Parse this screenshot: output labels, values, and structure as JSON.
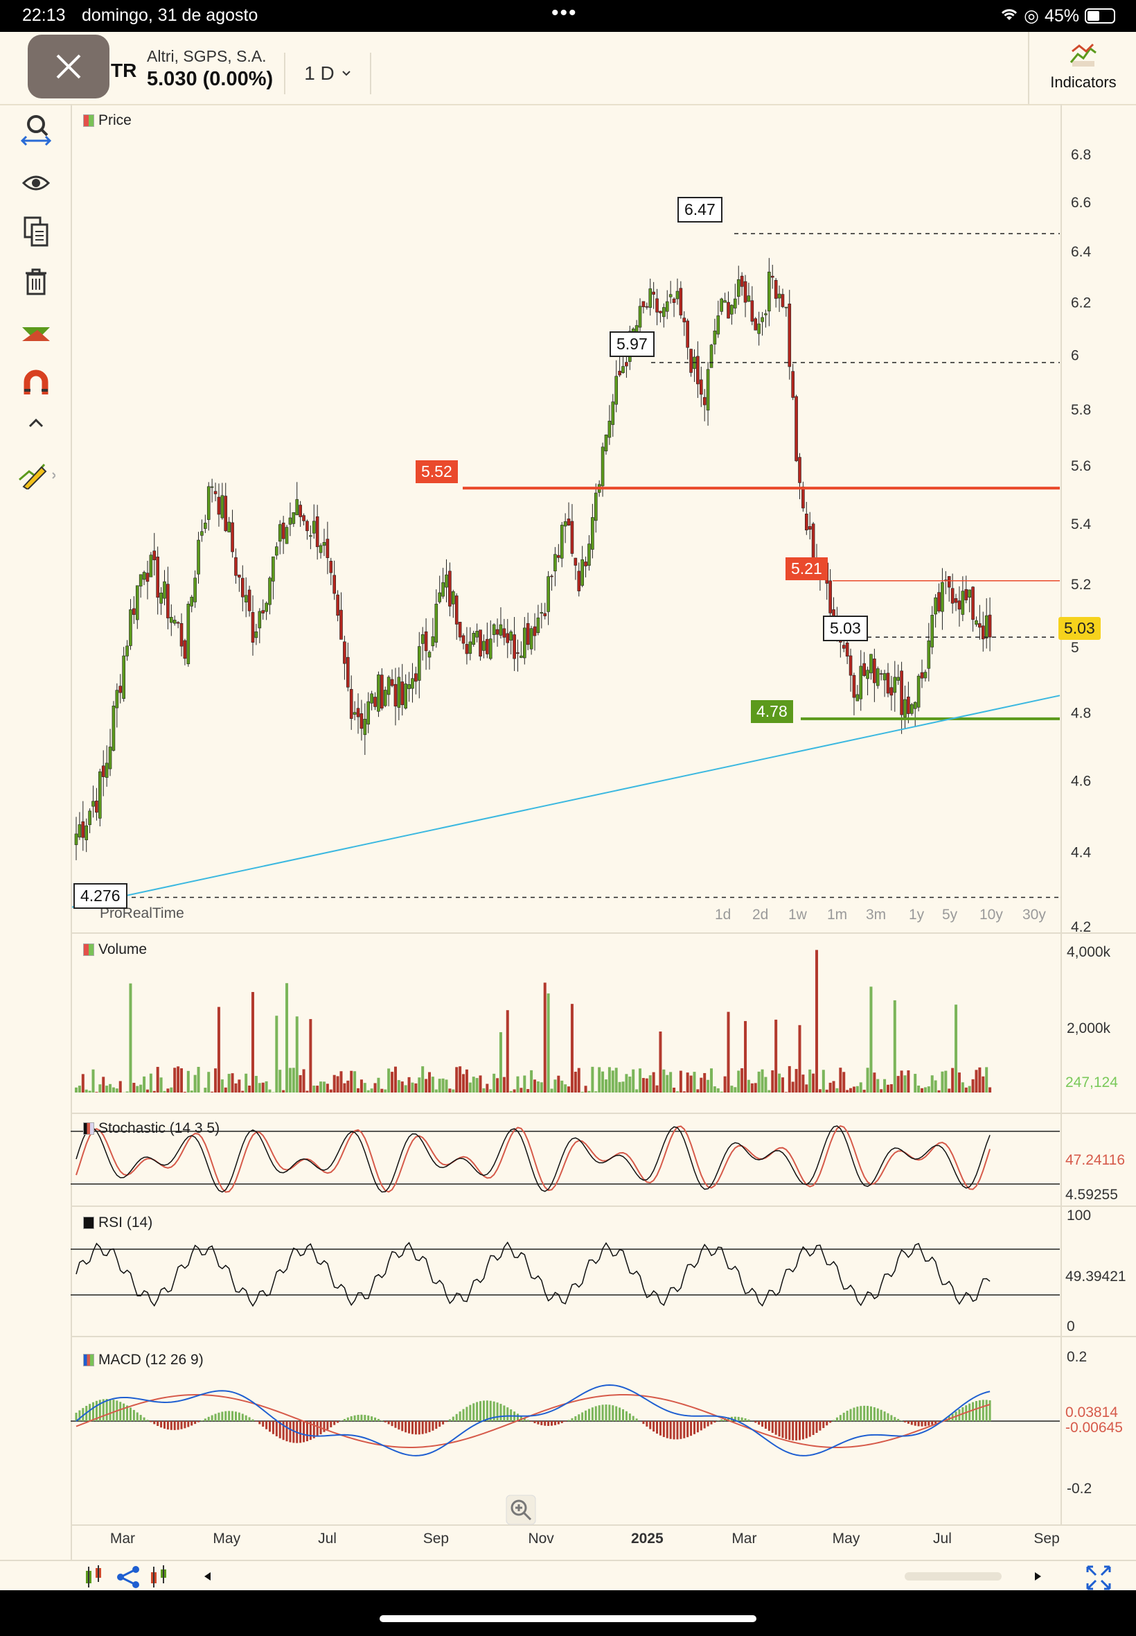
{
  "status_bar": {
    "time": "22:13",
    "date": "domingo, 31 de agosto",
    "battery": "45%"
  },
  "header": {
    "symbol": "TR",
    "company": "Altri, SGPS, S.A.",
    "price_change": "5.030 (0.00%)",
    "timeframe": "1 D",
    "indicators_label": "Indicators"
  },
  "sidebar": {
    "tools": [
      "search-icon",
      "eye-icon",
      "copy-icon",
      "trash-icon",
      "trend-icon",
      "magnet-icon",
      "chevron-up-icon",
      "pencil-icon"
    ]
  },
  "price_pane": {
    "label": "Price",
    "watermark": "ProRealTime",
    "y_ticks": [
      "6.8",
      "6.6",
      "6.4",
      "6.2",
      "6",
      "5.8",
      "5.6",
      "5.4",
      "5.2",
      "5",
      "4.8",
      "4.6",
      "4.4",
      "4.2"
    ],
    "level_tags": {
      "high": "6.47",
      "mid": "5.97",
      "resistance": "5.52",
      "recent": "5.21",
      "current": "5.03",
      "support": "4.78",
      "low": "4.276"
    },
    "last_price": "5.03",
    "periods": [
      "1d",
      "2d",
      "1w",
      "1m",
      "3m",
      "1y",
      "5y",
      "10y",
      "30y"
    ]
  },
  "volume_pane": {
    "label": "Volume",
    "y_ticks": [
      "4,000k",
      "2,000k"
    ],
    "last_value": "247,124"
  },
  "stochastic_pane": {
    "label": "Stochastic (14 3 5)",
    "value_k": "47.24116",
    "value_d": "4.59255"
  },
  "rsi_pane": {
    "label": "RSI (14)",
    "y_ticks": [
      "100",
      "0"
    ],
    "value": "49.39421"
  },
  "macd_pane": {
    "label": "MACD (12 26 9)",
    "y_ticks": [
      "0.2",
      "-0.2"
    ],
    "value_macd": "0.03814",
    "value_hist": "-0.00645"
  },
  "x_axis": {
    "labels": [
      "Mar",
      "May",
      "Jul",
      "Sep",
      "Nov",
      "2025",
      "Mar",
      "May",
      "Jul",
      "Sep"
    ]
  },
  "colors": {
    "up": "#5c9a1c",
    "down": "#b3261e",
    "resistance": "#ea4a2c",
    "support": "#5c9a1c",
    "trendline": "#3bb8e0",
    "macd_line": "#1f5fd1",
    "signal_line": "#d65a4a"
  },
  "chart_data": {
    "type": "candlestick",
    "title": "Altri, SGPS, S.A. 1 D",
    "x_labels": [
      "Mar",
      "May",
      "Jul",
      "Sep",
      "Nov",
      "2025",
      "Mar",
      "May",
      "Jul",
      "Sep"
    ],
    "y_range": [
      4.2,
      6.8
    ],
    "close_series": [
      4.45,
      4.52,
      4.6,
      4.85,
      5.1,
      5.28,
      5.2,
      5.1,
      5.0,
      5.35,
      5.55,
      5.4,
      5.2,
      5.05,
      5.2,
      5.35,
      5.45,
      5.4,
      5.35,
      5.1,
      4.85,
      4.78,
      4.85,
      4.9,
      4.82,
      4.95,
      5.05,
      5.2,
      5.1,
      5.0,
      5.02,
      5.1,
      5.0,
      5.05,
      5.1,
      5.25,
      5.4,
      5.2,
      5.5,
      5.75,
      5.95,
      6.1,
      6.2,
      6.15,
      6.2,
      6.0,
      5.8,
      6.15,
      6.2,
      6.25,
      6.1,
      6.3,
      6.2,
      5.5,
      5.3,
      5.2,
      5.05,
      4.9,
      4.92,
      4.95,
      4.88,
      4.82,
      4.9,
      5.1,
      5.2,
      5.15,
      5.1,
      5.03
    ],
    "resistance": 5.52,
    "support": 4.78,
    "high": 6.47,
    "low": 4.276,
    "last": 5.03
  }
}
